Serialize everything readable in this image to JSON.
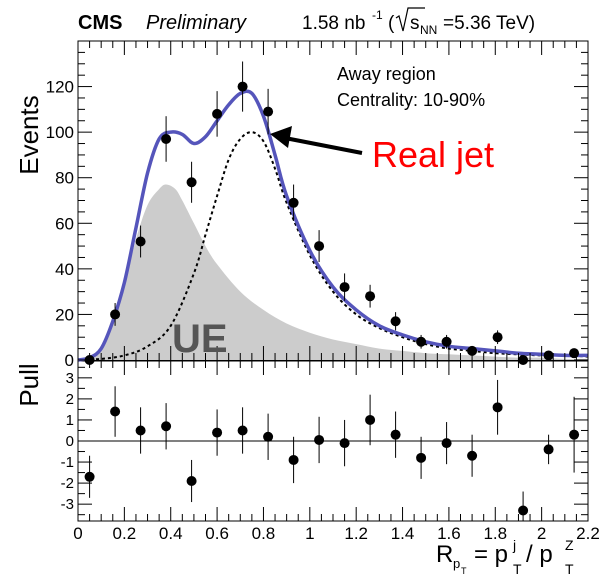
{
  "header": {
    "collab": "CMS",
    "status": "Preliminary",
    "lumi": "1.58 nb",
    "lumi_sup": "-1",
    "energy_pre": "(",
    "energy_s": "s",
    "energy_sub": "NN",
    "energy_post": "=5.36 TeV)"
  },
  "annotations": {
    "region": "Away region",
    "centrality": "Centrality: 10-90%",
    "real_jet": "Real jet",
    "ue": "UE",
    "colors": {
      "real_jet_text": "#ff0000",
      "ue_text": "#555555",
      "ue_fill": "#cccccc",
      "fit": "#5555bb"
    }
  },
  "axes": {
    "y_label": "Events",
    "pull_label": "Pull",
    "x_label_R": "R",
    "x_label_p": "p",
    "x_label_sub_T": "T",
    "x_label_eq": "= p",
    "x_label_sup_j": "j",
    "x_label_sub_T2": "T",
    "x_label_slash": "/ p",
    "x_label_sup_Z": "Z",
    "x_label_sub_T3": "T"
  },
  "chart_data": [
    {
      "type": "scatter",
      "panel": "main",
      "xlim": [
        0,
        2.2
      ],
      "ylim": [
        0,
        140
      ],
      "yticks": [
        0,
        20,
        40,
        60,
        80,
        100,
        120
      ],
      "xticks": [
        0,
        0.2,
        0.4,
        0.6,
        0.8,
        1.0,
        1.2,
        1.4,
        1.6,
        1.8,
        2.0,
        2.2
      ],
      "x_tick_labels": [
        "0",
        "0.2",
        "0.4",
        "0.6",
        "0.8",
        "1",
        "1.2",
        "1.4",
        "1.6",
        "1.8",
        "2",
        "2.2"
      ],
      "series": [
        {
          "kind": "data_points",
          "x": [
            0.05,
            0.16,
            0.27,
            0.38,
            0.49,
            0.6,
            0.71,
            0.82,
            0.93,
            1.04,
            1.15,
            1.26,
            1.37,
            1.48,
            1.59,
            1.7,
            1.81,
            1.92,
            2.03,
            2.14
          ],
          "y": [
            0,
            20,
            52,
            97,
            78,
            108,
            120,
            109,
            69,
            50,
            32,
            28,
            17,
            8,
            8,
            4,
            10,
            0,
            2,
            3
          ],
          "yerr": [
            1,
            5,
            7,
            10,
            9,
            10,
            11,
            10,
            8,
            7,
            6,
            5,
            4,
            3,
            3,
            2,
            3,
            1,
            1.5,
            1.8
          ]
        },
        {
          "kind": "fit_total",
          "x": [
            0.0,
            0.05,
            0.1,
            0.15,
            0.2,
            0.25,
            0.3,
            0.35,
            0.4,
            0.45,
            0.5,
            0.55,
            0.6,
            0.65,
            0.7,
            0.75,
            0.8,
            0.85,
            0.9,
            1.0,
            1.1,
            1.2,
            1.3,
            1.4,
            1.5,
            1.6,
            1.7,
            1.8,
            1.9,
            2.0,
            2.1,
            2.2
          ],
          "y": [
            0,
            1,
            5,
            17,
            34,
            58,
            82,
            97,
            100,
            99,
            95,
            98,
            105,
            112,
            117,
            117,
            107,
            90,
            72,
            48,
            32,
            22,
            15,
            11,
            8,
            6,
            5,
            4,
            3,
            2.5,
            2,
            2
          ]
        },
        {
          "kind": "real_jet",
          "x": [
            0.0,
            0.1,
            0.2,
            0.3,
            0.4,
            0.5,
            0.55,
            0.6,
            0.65,
            0.7,
            0.75,
            0.8,
            0.85,
            0.9,
            1.0,
            1.1,
            1.2,
            1.3,
            1.4,
            1.5,
            1.6,
            1.7,
            1.8,
            1.9,
            2.0,
            2.1,
            2.2
          ],
          "y": [
            0,
            0.5,
            2,
            6,
            15,
            38,
            55,
            72,
            88,
            97,
            100,
            96,
            84,
            69,
            46,
            30,
            20,
            14,
            10,
            7,
            5,
            4,
            3,
            2.5,
            2,
            2,
            1.5
          ]
        },
        {
          "kind": "ue",
          "x": [
            0.0,
            0.05,
            0.1,
            0.15,
            0.2,
            0.25,
            0.3,
            0.35,
            0.38,
            0.42,
            0.45,
            0.5,
            0.55,
            0.6,
            0.7,
            0.8,
            0.9,
            1.0,
            1.1,
            1.2,
            1.3,
            1.4,
            1.5,
            1.6,
            1.7,
            1.8,
            1.9,
            2.0,
            2.1,
            2.2
          ],
          "y": [
            0,
            1,
            5,
            17,
            33,
            53,
            68,
            75,
            77,
            75,
            70,
            60,
            50,
            42,
            30,
            22,
            16,
            12,
            9,
            7,
            5,
            4,
            3,
            2.5,
            2,
            1.5,
            1,
            1,
            0.5,
            0.5
          ]
        }
      ]
    },
    {
      "type": "scatter",
      "panel": "pull",
      "xlim": [
        0,
        2.2
      ],
      "ylim": [
        -3.8,
        3.8
      ],
      "yticks": [
        -3,
        -2,
        -1,
        0,
        1,
        2,
        3
      ],
      "series": [
        {
          "kind": "pull_points",
          "x": [
            0.05,
            0.16,
            0.27,
            0.38,
            0.49,
            0.6,
            0.71,
            0.82,
            0.93,
            1.04,
            1.15,
            1.26,
            1.37,
            1.48,
            1.59,
            1.7,
            1.81,
            1.92,
            2.03,
            2.14
          ],
          "y": [
            -1.7,
            1.4,
            0.5,
            0.7,
            -1.9,
            0.4,
            0.5,
            0.2,
            -0.9,
            0.05,
            -0.1,
            1.0,
            0.3,
            -0.8,
            -0.1,
            -0.7,
            1.6,
            -3.3,
            -0.4,
            0.3
          ],
          "yerr": [
            1.0,
            1.2,
            1.1,
            1.1,
            1.0,
            1.1,
            1.1,
            1.1,
            1.1,
            1.1,
            1.1,
            1.2,
            1.1,
            1.0,
            1.0,
            1.0,
            1.3,
            0.9,
            0.7,
            1.8
          ]
        }
      ]
    }
  ]
}
